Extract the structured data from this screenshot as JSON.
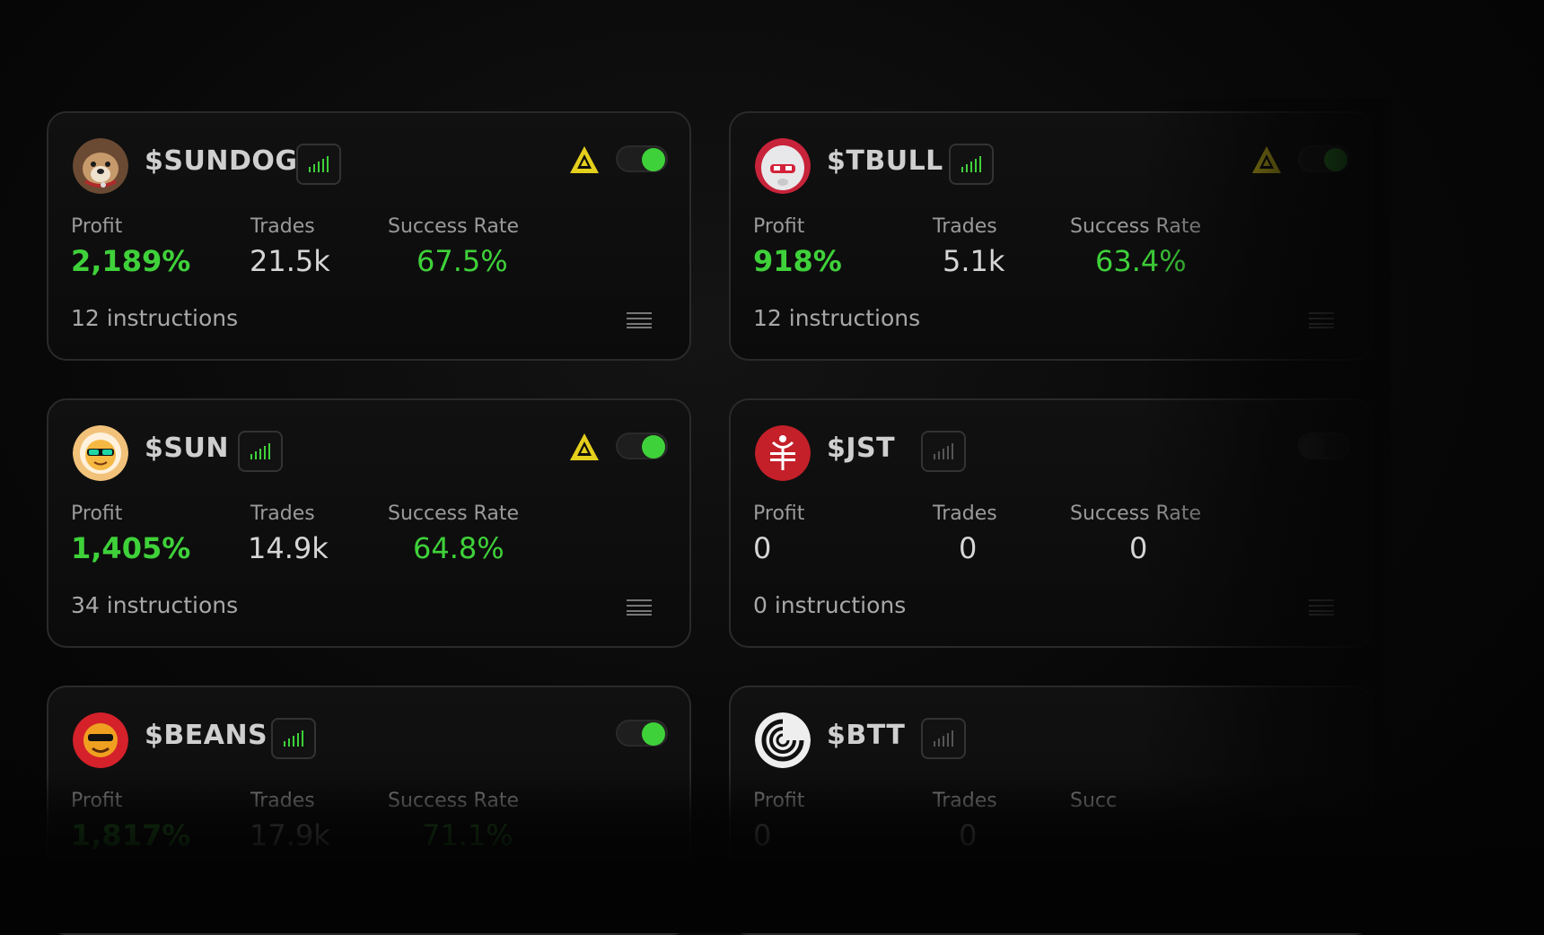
{
  "colors": {
    "accent": "#3fd13a",
    "warning": "#e4cf1c",
    "card_border": "#2a2a2a"
  },
  "cards": [
    {
      "ticker": "$SUNDOG",
      "active": true,
      "warning": true,
      "profit_label": "Profit",
      "profit": "2,189%",
      "trades_label": "Trades",
      "trades": "21.5k",
      "success_label": "Success Rate",
      "success": "67.5%",
      "instructions": "12 instructions",
      "avatar": "dog-avatar-icon"
    },
    {
      "ticker": "$TBULL",
      "active": true,
      "warning": true,
      "profit_label": "Profit",
      "profit": "918%",
      "trades_label": "Trades",
      "trades": "5.1k",
      "success_label": "Success Rate",
      "success": "63.4%",
      "instructions": "12 instructions",
      "avatar": "bull-avatar-icon"
    },
    {
      "ticker": "$SUN",
      "active": true,
      "warning": true,
      "profit_label": "Profit",
      "profit": "1,405%",
      "trades_label": "Trades",
      "trades": "14.9k",
      "success_label": "Success Rate",
      "success": "64.8%",
      "instructions": "34 instructions",
      "avatar": "sun-avatar-icon"
    },
    {
      "ticker": "$JST",
      "active": false,
      "warning": false,
      "profit_label": "Profit",
      "profit": "0",
      "trades_label": "Trades",
      "trades": "0",
      "success_label": "Success Rate",
      "success": "0",
      "instructions": "0 instructions",
      "avatar": "jst-avatar-icon"
    },
    {
      "ticker": "$BEANS",
      "active": true,
      "warning": false,
      "profit_label": "Profit",
      "profit": "1,817%",
      "trades_label": "Trades",
      "trades": "17.9k",
      "success_label": "Success Rate",
      "success": "71.1%",
      "instructions": "",
      "avatar": "beans-avatar-icon"
    },
    {
      "ticker": "$BTT",
      "active": false,
      "warning": false,
      "profit_label": "Profit",
      "profit": "0",
      "trades_label": "Trades",
      "trades": "0",
      "success_label": "Succ",
      "success": "",
      "instructions": "",
      "avatar": "btt-avatar-icon"
    }
  ]
}
